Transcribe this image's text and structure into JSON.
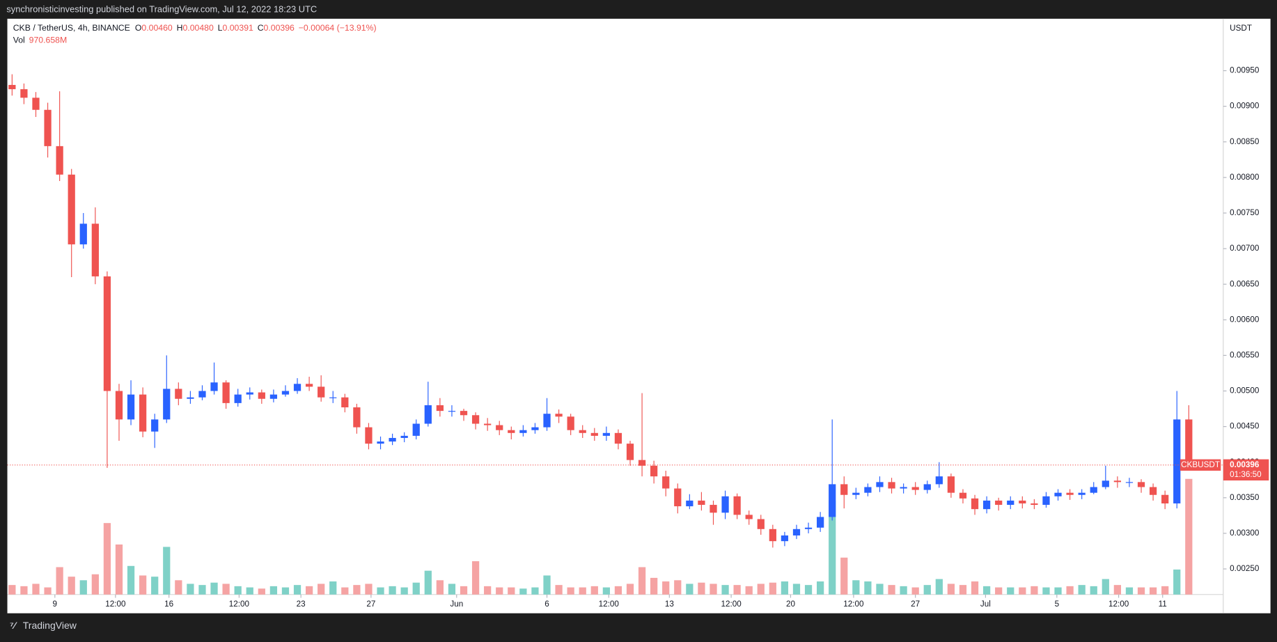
{
  "header": {
    "publisher": "synchronisticinvesting published on TradingView.com, Jul 12, 2022 18:23 UTC"
  },
  "footer": {
    "brand": "TradingView"
  },
  "legend": {
    "symbol": "CKB / TetherUS, 4h, BINANCE",
    "ohlc": [
      {
        "label": "O",
        "value": "0.00460"
      },
      {
        "label": "H",
        "value": "0.00480"
      },
      {
        "label": "L",
        "value": "0.00391"
      },
      {
        "label": "C",
        "value": "0.00396"
      }
    ],
    "change": "−0.00064 (−13.91%)",
    "volume_name": "Vol",
    "volume_label": "970.658M"
  },
  "price_badge": {
    "symbol": "CKBUSDT",
    "price": "0.00396",
    "countdown": "01:36:50"
  },
  "chart_data": {
    "type": "candlestick",
    "y_unit": "USDT",
    "up_color": "#2962ff",
    "down_color": "#ef5350",
    "volume_up_color": "#7fd1c7",
    "volume_down_color": "#f5a3a3",
    "xlim": [
      -0.4,
      101.9
    ],
    "ylim": [
      0.00214,
      0.01023
    ],
    "yticks": [
      {
        "value": 0.0025,
        "label": "0.00250"
      },
      {
        "value": 0.003,
        "label": "0.00300"
      },
      {
        "value": 0.0035,
        "label": "0.00350"
      },
      {
        "value": 0.004,
        "label": "0.00400"
      },
      {
        "value": 0.0045,
        "label": "0.00450"
      },
      {
        "value": 0.005,
        "label": "0.00500"
      },
      {
        "value": 0.0055,
        "label": "0.00550"
      },
      {
        "value": 0.006,
        "label": "0.00600"
      },
      {
        "value": 0.0065,
        "label": "0.00650"
      },
      {
        "value": 0.007,
        "label": "0.00700"
      },
      {
        "value": 0.0075,
        "label": "0.00750"
      },
      {
        "value": 0.008,
        "label": "0.00800"
      },
      {
        "value": 0.0085,
        "label": "0.00850"
      },
      {
        "value": 0.009,
        "label": "0.00900"
      },
      {
        "value": 0.0095,
        "label": "0.00950"
      }
    ],
    "xticks": [
      {
        "value": 3.6,
        "label": "9"
      },
      {
        "value": 8.7,
        "label": "12:00"
      },
      {
        "value": 13.2,
        "label": "16"
      },
      {
        "value": 19.1,
        "label": "12:00"
      },
      {
        "value": 24.3,
        "label": "23"
      },
      {
        "value": 30.2,
        "label": "27"
      },
      {
        "value": 37.4,
        "label": "Jun"
      },
      {
        "value": 45.0,
        "label": "6"
      },
      {
        "value": 50.2,
        "label": "12:00"
      },
      {
        "value": 55.3,
        "label": "13"
      },
      {
        "value": 60.5,
        "label": "12:00"
      },
      {
        "value": 65.5,
        "label": "20"
      },
      {
        "value": 70.8,
        "label": "12:00"
      },
      {
        "value": 76.0,
        "label": "27"
      },
      {
        "value": 81.9,
        "label": "Jul"
      },
      {
        "value": 87.9,
        "label": "5"
      },
      {
        "value": 93.1,
        "label": "12:00"
      },
      {
        "value": 96.8,
        "label": "11"
      }
    ],
    "open": [
      0.0093,
      0.00924,
      0.00912,
      0.00895,
      0.00844,
      0.00804,
      0.00706,
      0.00735,
      0.00661,
      0.005,
      0.0046,
      0.00495,
      0.00443,
      0.0046,
      0.00503,
      0.00489,
      0.00491,
      0.005,
      0.00512,
      0.00483,
      0.00495,
      0.00498,
      0.00489,
      0.00495,
      0.005,
      0.0051,
      0.00506,
      0.00491,
      0.00491,
      0.00477,
      0.00449,
      0.00426,
      0.00429,
      0.00434,
      0.00437,
      0.00454,
      0.0048,
      0.00472,
      0.00472,
      0.00466,
      0.00454,
      0.00452,
      0.00445,
      0.00441,
      0.00445,
      0.00449,
      0.00468,
      0.00464,
      0.00445,
      0.00441,
      0.00437,
      0.00441,
      0.00426,
      0.00403,
      0.00395,
      0.0038,
      0.00363,
      0.00338,
      0.00346,
      0.0034,
      0.00329,
      0.00352,
      0.00326,
      0.0032,
      0.00306,
      0.00289,
      0.00297,
      0.00306,
      0.00308,
      0.00323,
      0.00369,
      0.00354,
      0.00357,
      0.00365,
      0.00372,
      0.00363,
      0.00365,
      0.00361,
      0.00369,
      0.0038,
      0.00357,
      0.00349,
      0.00334,
      0.00346,
      0.0034,
      0.00346,
      0.00342,
      0.0034,
      0.00352,
      0.00357,
      0.00354,
      0.00357,
      0.00365,
      0.00374,
      0.00372,
      0.00372,
      0.00365,
      0.00354,
      0.00342,
      0.0046
    ],
    "high": [
      0.00945,
      0.00932,
      0.0092,
      0.00905,
      0.00921,
      0.00812,
      0.0075,
      0.00758,
      0.00668,
      0.0051,
      0.00515,
      0.00505,
      0.00468,
      0.0055,
      0.00512,
      0.005,
      0.00508,
      0.0054,
      0.00515,
      0.00503,
      0.00505,
      0.00502,
      0.00502,
      0.00508,
      0.00518,
      0.0052,
      0.00522,
      0.005,
      0.00496,
      0.00482,
      0.00455,
      0.00436,
      0.0044,
      0.00442,
      0.0046,
      0.00513,
      0.0049,
      0.0048,
      0.00475,
      0.0047,
      0.00462,
      0.00458,
      0.0045,
      0.00452,
      0.00455,
      0.0049,
      0.00474,
      0.00468,
      0.00452,
      0.00448,
      0.0045,
      0.00446,
      0.0043,
      0.00497,
      0.00402,
      0.00388,
      0.0037,
      0.00355,
      0.00358,
      0.00346,
      0.0036,
      0.00356,
      0.00332,
      0.00326,
      0.00312,
      0.00302,
      0.00312,
      0.00315,
      0.0033,
      0.0046,
      0.0038,
      0.00364,
      0.0037,
      0.0038,
      0.00378,
      0.0037,
      0.00372,
      0.00374,
      0.004,
      0.00384,
      0.00362,
      0.00354,
      0.00352,
      0.0035,
      0.00352,
      0.00352,
      0.00348,
      0.00358,
      0.00362,
      0.00362,
      0.00362,
      0.00372,
      0.00395,
      0.0038,
      0.00378,
      0.00376,
      0.0037,
      0.0036,
      0.005,
      0.0048
    ],
    "low": [
      0.00915,
      0.00903,
      0.00885,
      0.00828,
      0.00795,
      0.0066,
      0.007,
      0.0065,
      0.00392,
      0.0043,
      0.00452,
      0.00435,
      0.0042,
      0.00455,
      0.0048,
      0.00482,
      0.00487,
      0.00495,
      0.00475,
      0.00478,
      0.00488,
      0.00482,
      0.00484,
      0.00492,
      0.00496,
      0.005,
      0.00485,
      0.00483,
      0.0047,
      0.0044,
      0.00418,
      0.00418,
      0.00424,
      0.00428,
      0.00432,
      0.0045,
      0.00464,
      0.00464,
      0.00458,
      0.00446,
      0.00444,
      0.00438,
      0.00432,
      0.00436,
      0.0044,
      0.00444,
      0.00455,
      0.00438,
      0.00434,
      0.0043,
      0.0043,
      0.00418,
      0.00395,
      0.0038,
      0.0037,
      0.00352,
      0.00328,
      0.00334,
      0.00332,
      0.00312,
      0.0032,
      0.0032,
      0.00312,
      0.00298,
      0.0028,
      0.00282,
      0.00292,
      0.003,
      0.00302,
      0.00318,
      0.00335,
      0.00348,
      0.00352,
      0.00358,
      0.00356,
      0.00356,
      0.00354,
      0.00356,
      0.00364,
      0.0035,
      0.00342,
      0.00326,
      0.00328,
      0.00332,
      0.00334,
      0.00335,
      0.00334,
      0.00336,
      0.00346,
      0.00347,
      0.00348,
      0.00355,
      0.00362,
      0.00364,
      0.00365,
      0.00357,
      0.00346,
      0.00334,
      0.00335,
      0.00391
    ],
    "close": [
      0.00924,
      0.00912,
      0.00895,
      0.00844,
      0.00804,
      0.00706,
      0.00735,
      0.00661,
      0.005,
      0.0046,
      0.00495,
      0.00443,
      0.0046,
      0.00503,
      0.00489,
      0.00491,
      0.005,
      0.00512,
      0.00483,
      0.00495,
      0.00498,
      0.00489,
      0.00495,
      0.005,
      0.0051,
      0.00506,
      0.00491,
      0.00491,
      0.00477,
      0.00449,
      0.00426,
      0.00429,
      0.00434,
      0.00437,
      0.00454,
      0.0048,
      0.00472,
      0.00472,
      0.00466,
      0.00454,
      0.00452,
      0.00445,
      0.00441,
      0.00445,
      0.00449,
      0.00468,
      0.00464,
      0.00445,
      0.00441,
      0.00437,
      0.00441,
      0.00426,
      0.00403,
      0.00395,
      0.0038,
      0.00363,
      0.00338,
      0.00346,
      0.0034,
      0.00329,
      0.00352,
      0.00326,
      0.0032,
      0.00306,
      0.00289,
      0.00297,
      0.00306,
      0.00308,
      0.00323,
      0.00369,
      0.00354,
      0.00357,
      0.00365,
      0.00372,
      0.00363,
      0.00365,
      0.00361,
      0.00369,
      0.0038,
      0.00357,
      0.00349,
      0.00334,
      0.00346,
      0.0034,
      0.00346,
      0.00342,
      0.0034,
      0.00352,
      0.00357,
      0.00354,
      0.00357,
      0.00365,
      0.00374,
      0.00372,
      0.00372,
      0.00365,
      0.00354,
      0.00342,
      0.0046,
      0.00396
    ],
    "volume": [
      80,
      70,
      90,
      60,
      230,
      150,
      120,
      170,
      600,
      420,
      240,
      160,
      150,
      400,
      120,
      90,
      80,
      100,
      90,
      70,
      60,
      50,
      70,
      60,
      80,
      70,
      90,
      110,
      60,
      80,
      90,
      60,
      70,
      60,
      100,
      200,
      120,
      90,
      70,
      280,
      70,
      60,
      60,
      50,
      60,
      160,
      80,
      60,
      60,
      70,
      60,
      70,
      90,
      230,
      140,
      110,
      120,
      90,
      100,
      90,
      80,
      80,
      70,
      90,
      100,
      110,
      90,
      80,
      110,
      790,
      310,
      120,
      110,
      90,
      80,
      70,
      60,
      80,
      130,
      90,
      80,
      110,
      70,
      60,
      60,
      60,
      70,
      60,
      60,
      70,
      80,
      70,
      130,
      80,
      60,
      60,
      60,
      70,
      210,
      970.658
    ]
  }
}
